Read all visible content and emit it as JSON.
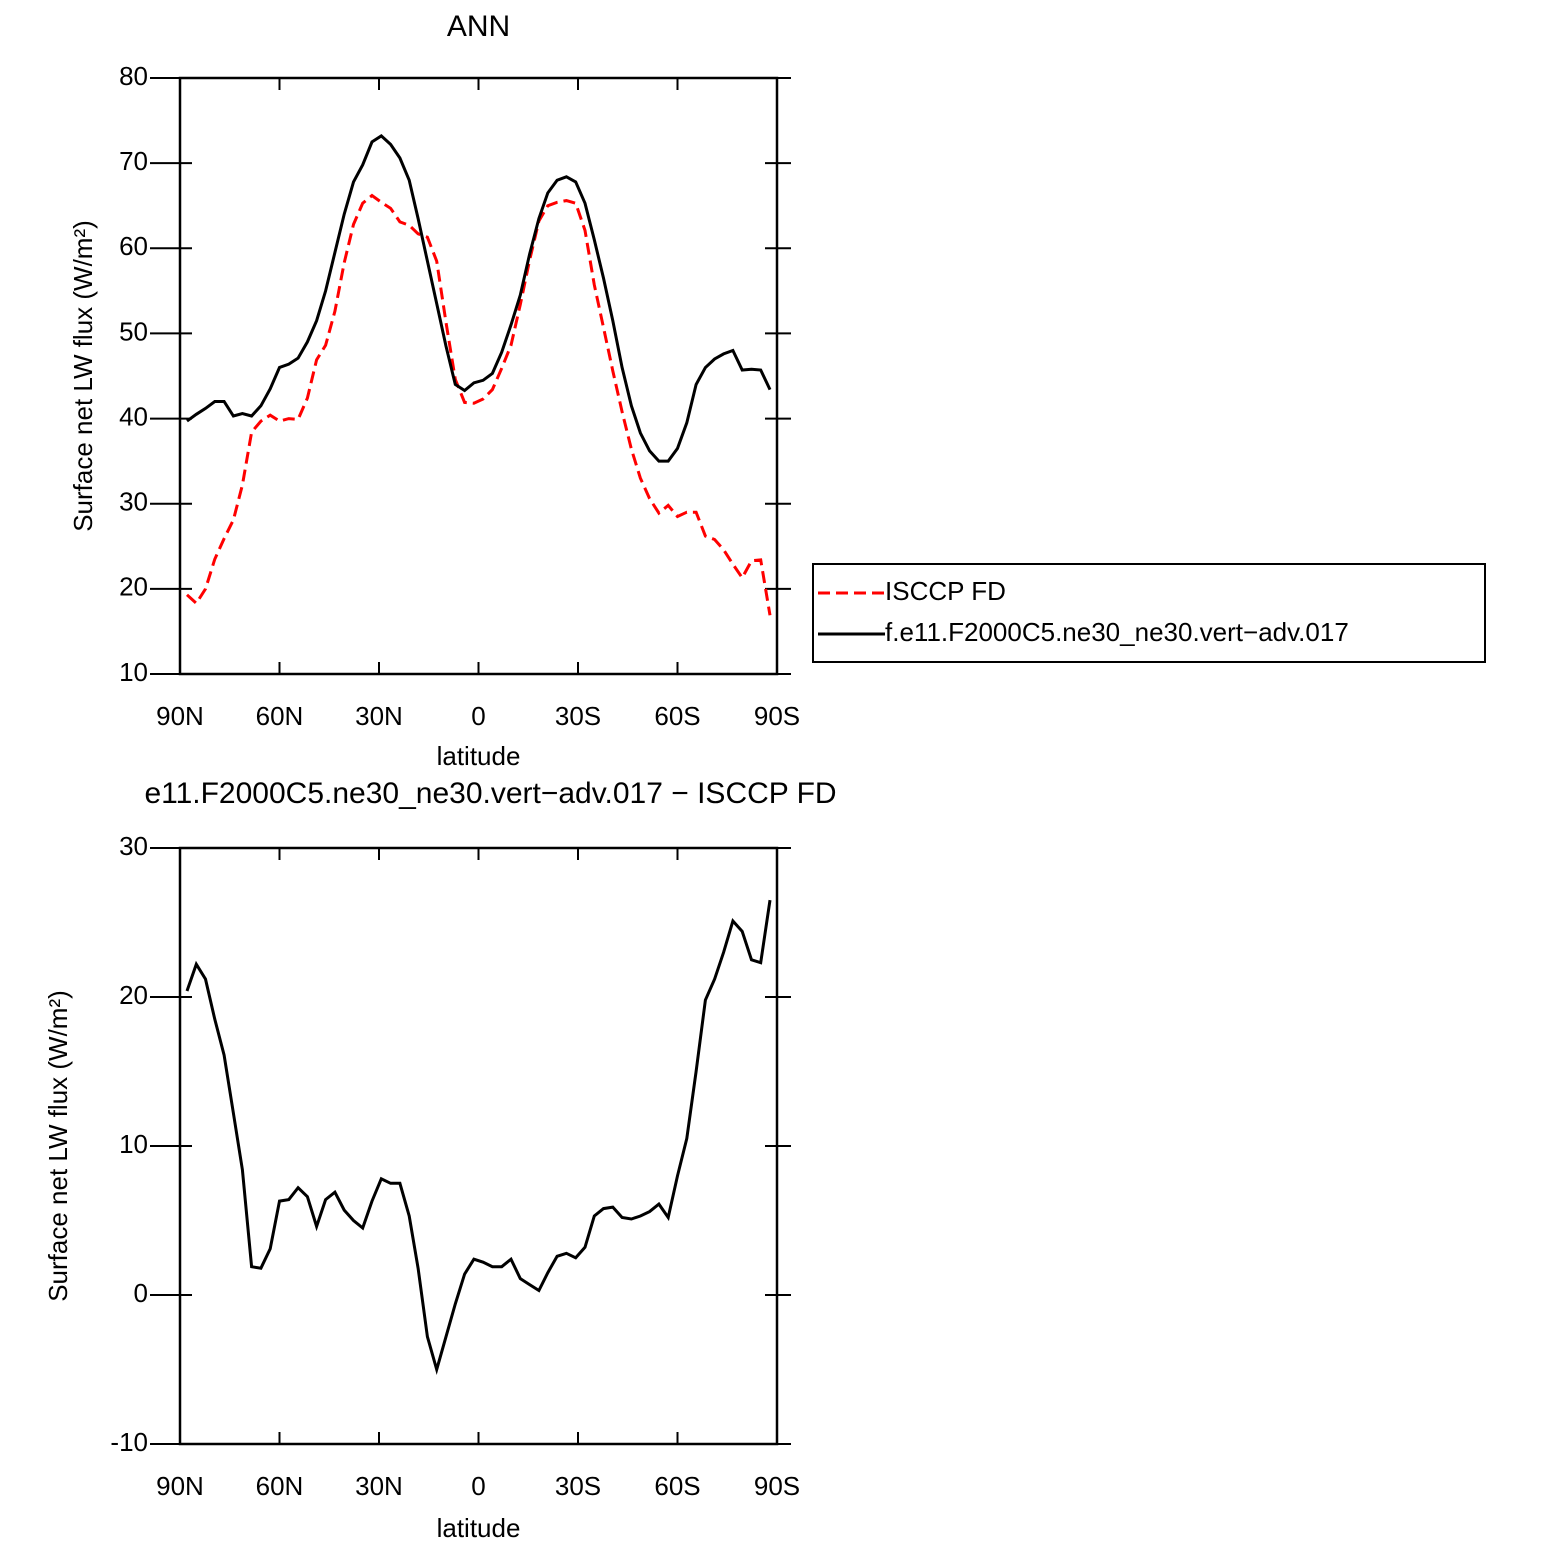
{
  "chart_data": [
    {
      "type": "line",
      "title": "ANN",
      "xlabel": "latitude",
      "ylabel": "Surface net LW flux (W/m²)",
      "x": [
        87.9,
        85.1,
        82.3,
        79.5,
        76.7,
        73.9,
        71.2,
        68.4,
        65.6,
        62.8,
        60.0,
        57.2,
        54.4,
        51.6,
        48.8,
        46.1,
        43.3,
        40.5,
        37.7,
        34.9,
        32.1,
        29.3,
        26.5,
        23.7,
        20.9,
        18.2,
        15.4,
        12.6,
        9.8,
        7.0,
        4.2,
        1.4,
        -1.4,
        -4.2,
        -7.0,
        -9.8,
        -12.6,
        -15.4,
        -18.2,
        -20.9,
        -23.7,
        -26.5,
        -29.3,
        -32.1,
        -34.9,
        -37.7,
        -40.5,
        -43.3,
        -46.1,
        -48.8,
        -51.6,
        -54.4,
        -57.2,
        -60.0,
        -62.8,
        -65.6,
        -68.4,
        -71.2,
        -73.9,
        -76.7,
        -79.5,
        -82.3,
        -85.1,
        -87.9
      ],
      "series": [
        {
          "name": "ISCCP FD",
          "color": "#ff0000",
          "dash": "dashed",
          "values": [
            19.3,
            18.3,
            20.0,
            23.5,
            25.9,
            28.1,
            32.2,
            38.4,
            39.7,
            40.4,
            39.7,
            40.0,
            39.9,
            42.4,
            46.9,
            48.6,
            52.6,
            58.3,
            62.8,
            65.3,
            66.2,
            65.4,
            64.7,
            63.1,
            62.7,
            61.7,
            61.3,
            58.5,
            51.3,
            44.6,
            41.9,
            41.8,
            42.3,
            43.4,
            45.9,
            48.6,
            53.4,
            58.6,
            63.2,
            65.0,
            65.4,
            65.6,
            65.3,
            62.1,
            55.7,
            50.7,
            45.6,
            40.8,
            36.4,
            33.0,
            30.6,
            28.9,
            29.8,
            28.5,
            29.0,
            29.0,
            26.2,
            25.8,
            24.6,
            22.9,
            21.3,
            23.3,
            23.4,
            16.9
          ]
        },
        {
          "name": "f.e11.F2000C5.ne30_ne30.vert−adv.017",
          "color": "#000000",
          "dash": "solid",
          "values": [
            39.7,
            40.5,
            41.2,
            42.0,
            42.0,
            40.3,
            40.6,
            40.3,
            41.5,
            43.5,
            46.0,
            46.4,
            47.1,
            49.0,
            51.5,
            55.0,
            59.5,
            64.0,
            67.8,
            69.8,
            72.5,
            73.2,
            72.2,
            70.6,
            68.0,
            63.5,
            58.5,
            53.5,
            48.5,
            44.0,
            43.3,
            44.2,
            44.5,
            45.3,
            47.8,
            51.0,
            54.5,
            59.3,
            63.5,
            66.5,
            68.0,
            68.4,
            67.8,
            65.3,
            61.0,
            56.5,
            51.5,
            46.0,
            41.5,
            38.3,
            36.2,
            35.0,
            35.0,
            36.5,
            39.5,
            44.0,
            46.0,
            47.0,
            47.6,
            48.0,
            45.7,
            45.8,
            45.7,
            43.4
          ]
        }
      ],
      "xlim": [
        90,
        -90
      ],
      "xticks": [
        {
          "value": 90,
          "label": "90N"
        },
        {
          "value": 60,
          "label": "60N"
        },
        {
          "value": 30,
          "label": "30N"
        },
        0,
        {
          "value": -30,
          "label": "30S"
        },
        {
          "value": -60,
          "label": "60S"
        },
        {
          "value": -90,
          "label": "90S"
        }
      ],
      "ylim": [
        10,
        80
      ],
      "yticks": [
        10,
        20,
        30,
        40,
        50,
        60,
        70,
        80
      ],
      "legend": "right"
    },
    {
      "type": "line",
      "title": "e11.F2000C5.ne30_ne30.vert−adv.017 − ISCCP FD",
      "xlabel": "latitude",
      "ylabel": "Surface net LW flux (W/m²)",
      "x": [
        87.9,
        85.1,
        82.3,
        79.5,
        76.7,
        73.9,
        71.2,
        68.4,
        65.6,
        62.8,
        60.0,
        57.2,
        54.4,
        51.6,
        48.8,
        46.1,
        43.3,
        40.5,
        37.7,
        34.9,
        32.1,
        29.3,
        26.5,
        23.7,
        20.9,
        18.2,
        15.4,
        12.6,
        9.8,
        7.0,
        4.2,
        1.4,
        -1.4,
        -4.2,
        -7.0,
        -9.8,
        -12.6,
        -15.4,
        -18.2,
        -20.9,
        -23.7,
        -26.5,
        -29.3,
        -32.1,
        -34.9,
        -37.7,
        -40.5,
        -43.3,
        -46.1,
        -48.8,
        -51.6,
        -54.4,
        -57.2,
        -60.0,
        -62.8,
        -65.6,
        -68.4,
        -71.2,
        -73.9,
        -76.7,
        -79.5,
        -82.3,
        -85.1,
        -87.9
      ],
      "color": "#000000",
      "values": [
        20.4,
        22.2,
        21.2,
        18.5,
        16.1,
        12.2,
        8.4,
        1.9,
        1.8,
        3.1,
        6.3,
        6.4,
        7.2,
        6.6,
        4.6,
        6.4,
        6.9,
        5.7,
        5.0,
        4.5,
        6.3,
        7.8,
        7.5,
        7.5,
        5.3,
        1.8,
        -2.8,
        -5.0,
        -2.8,
        -0.6,
        1.4,
        2.4,
        2.2,
        1.9,
        1.9,
        2.4,
        1.1,
        0.7,
        0.3,
        1.5,
        2.6,
        2.8,
        2.5,
        3.2,
        5.3,
        5.8,
        5.9,
        5.2,
        5.1,
        5.3,
        5.6,
        6.1,
        5.2,
        8.0,
        10.5,
        15.0,
        19.8,
        21.2,
        23.0,
        25.1,
        24.4,
        22.5,
        22.3,
        26.5
      ],
      "xlim": [
        90,
        -90
      ],
      "xticks": [
        {
          "value": 90,
          "label": "90N"
        },
        {
          "value": 60,
          "label": "60N"
        },
        {
          "value": 30,
          "label": "30N"
        },
        0,
        {
          "value": -30,
          "label": "30S"
        },
        {
          "value": -60,
          "label": "60S"
        },
        {
          "value": -90,
          "label": "90S"
        }
      ],
      "ylim": [
        -10,
        30
      ],
      "yticks": [
        -10,
        0,
        10,
        20,
        30
      ]
    }
  ]
}
